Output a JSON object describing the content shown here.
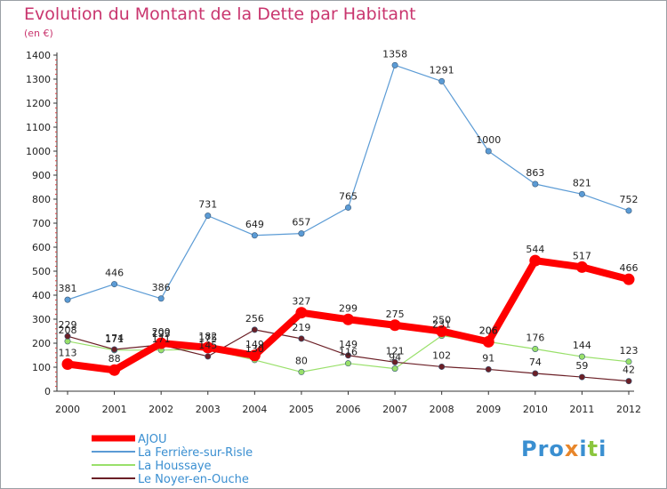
{
  "title": "Evolution du Montant de la Dette par Habitant",
  "unit": "(en €)",
  "logo": "Proxiti",
  "chart_data": {
    "type": "line",
    "x": [
      "2000",
      "2001",
      "2002",
      "2003",
      "2004",
      "2005",
      "2006",
      "2007",
      "2008",
      "2009",
      "2010",
      "2011",
      "2012"
    ],
    "ylim": [
      0,
      1400
    ],
    "yticks": [
      0,
      100,
      200,
      300,
      400,
      500,
      600,
      700,
      800,
      900,
      1000,
      1100,
      1200,
      1300,
      1400
    ],
    "grid": false,
    "legend_position": "bottom-left",
    "series": [
      {
        "name": "La Ferrière-sur-Risle",
        "color": "#5b9bd5",
        "values": [
          381,
          446,
          386,
          731,
          649,
          657,
          765,
          1358,
          1291,
          1000,
          863,
          821,
          752
        ]
      },
      {
        "name": "La Houssaye",
        "color": "#99e06a",
        "values": [
          208,
          171,
          171,
          175,
          130,
          80,
          116,
          94,
          231,
          206,
          176,
          144,
          123
        ]
      },
      {
        "name": "Le Noyer-en-Ouche",
        "color": "#6b1f26",
        "values": [
          229,
          174,
          193,
          145,
          256,
          219,
          149,
          121,
          102,
          91,
          74,
          59,
          42
        ]
      },
      {
        "name": "AJOU",
        "color": "#ff0000",
        "bold": true,
        "values": [
          113,
          88,
          200,
          182,
          149,
          327,
          299,
          275,
          250,
          206,
          544,
          517,
          466
        ]
      }
    ]
  }
}
